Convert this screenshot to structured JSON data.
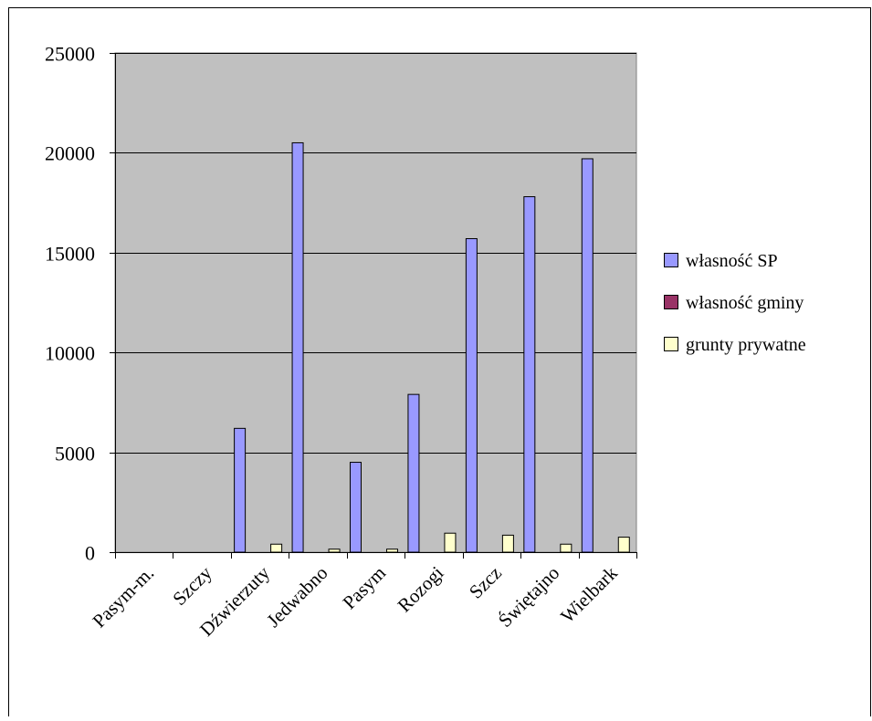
{
  "colors": {
    "plot_background": "#c0c0c0",
    "gridline": "#000000",
    "series_sp": "#9999ff",
    "series_gmina": "#993366",
    "series_private": "#ffffcc"
  },
  "chart_data": {
    "type": "bar",
    "title": "",
    "xlabel": "",
    "ylabel": "",
    "ylim": [
      0,
      25000
    ],
    "yticks": [
      0,
      5000,
      10000,
      15000,
      20000,
      25000
    ],
    "ytick_labels": [
      "0",
      "5000",
      "10000",
      "15000",
      "20000",
      "25000"
    ],
    "grid": true,
    "legend_position": "right",
    "categories": [
      "Pasym-m.",
      "Szczy",
      "Dźwierzuty",
      "Jedwabno",
      "Pasym",
      "Rozogi",
      "Szcz",
      "Świętajno",
      "Wielbark"
    ],
    "series": [
      {
        "name": "własność SP",
        "color_key": "series_sp",
        "values": [
          0,
          0,
          6200,
          20500,
          4500,
          7900,
          15700,
          17800,
          19700
        ]
      },
      {
        "name": "własność gminy",
        "color_key": "series_gmina",
        "values": [
          0,
          0,
          0,
          0,
          0,
          0,
          0,
          0,
          0
        ]
      },
      {
        "name": "grunty prywatne",
        "color_key": "series_private",
        "values": [
          0,
          0,
          400,
          150,
          150,
          950,
          850,
          400,
          750
        ]
      }
    ]
  }
}
